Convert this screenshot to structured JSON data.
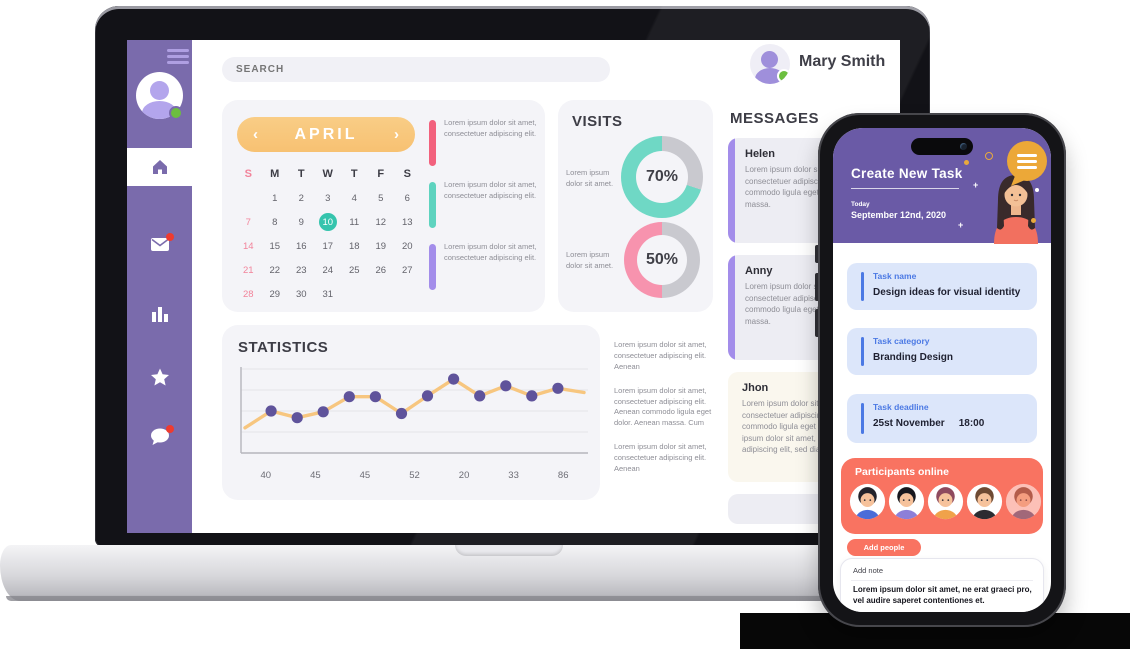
{
  "topbar": {
    "search_placeholder": "SEARCH",
    "user_name": "Mary Smith"
  },
  "sidebar": {
    "items": [
      {
        "icon": "home",
        "active": true
      },
      {
        "icon": "mail",
        "badge": true
      },
      {
        "icon": "bar-chart",
        "badge": false
      },
      {
        "icon": "star",
        "badge": false
      },
      {
        "icon": "chat",
        "badge": true
      }
    ]
  },
  "calendar": {
    "month": "APRIL",
    "prev_icon": "‹",
    "next_icon": "›",
    "day_headers": [
      "S",
      "M",
      "T",
      "W",
      "T",
      "F",
      "S"
    ],
    "weeks": [
      [
        "",
        "1",
        "2",
        "3",
        "4",
        "5",
        "6"
      ],
      [
        "7",
        "8",
        "9",
        "10",
        "11",
        "12",
        "13"
      ],
      [
        "14",
        "15",
        "16",
        "17",
        "18",
        "19",
        "20"
      ],
      [
        "21",
        "22",
        "23",
        "24",
        "25",
        "26",
        "27"
      ],
      [
        "28",
        "29",
        "30",
        "31",
        "",
        "",
        ""
      ]
    ],
    "selected_day": "10",
    "events": [
      {
        "color": "#f2617d",
        "text": "Lorem ipsum dolor sit amet, consectetuer adipiscing elit."
      },
      {
        "color": "#5ed3bf",
        "text": "Lorem ipsum dolor sit amet, consectetuer adipiscing elit."
      },
      {
        "color": "#a38dea",
        "text": "Lorem ipsum dolor sit amet, consectetuer adipiscing elit."
      }
    ]
  },
  "visits": {
    "title": "VISITS",
    "charts": [
      {
        "type": "donut",
        "percent": 70,
        "percent_label": "70%",
        "label_text": "Lorem ipsum dolor sit amet.",
        "color": "#6fd8c5",
        "track_color": "#c9c9cf"
      },
      {
        "type": "donut",
        "percent": 50,
        "percent_label": "50%",
        "label_text": "Lorem ipsum dolor sit amet.",
        "color": "#f793ae",
        "track_color": "#c9c9cf"
      }
    ]
  },
  "messages": {
    "title": "MESSAGES",
    "items": [
      {
        "name": "Helen",
        "accent": "#a38dea",
        "bg": "#ededf3",
        "text": "Lorem ipsum dolor sit amet, consectetuer adipiscing elit. Aenean commodo ligula eget dolor. Aenean massa."
      },
      {
        "name": "Anny",
        "accent": "#a38dea",
        "bg": "#ededf3",
        "text": "Lorem ipsum dolor sit amet, consectetuer adipiscing elit. Aenean commodo ligula eget dolor. Aenean massa."
      },
      {
        "name": "Jhon",
        "accent": "",
        "bg": "#faf7ee",
        "text": "Lorem ipsum dolor sit amet, consectetuer adipiscing elit. Aenean commodo ligula eget dolor. Aenean ipsum dolor sit amet, consectetuer adipiscing elit, sed diam."
      }
    ]
  },
  "statistics": {
    "title": "STATISTICS",
    "chart": {
      "type": "line",
      "x_tick_labels": [
        "40",
        "45",
        "45",
        "52",
        "20",
        "33",
        "86"
      ],
      "y_values": [
        30,
        50,
        42,
        49,
        67,
        67,
        47,
        68,
        88,
        68,
        80,
        68,
        77,
        72
      ],
      "marker": [
        false,
        true,
        true,
        true,
        true,
        true,
        true,
        true,
        true,
        true,
        true,
        true,
        true,
        false
      ],
      "ylim": [
        0,
        100
      ],
      "grid": true,
      "line_color": "#f7c67f",
      "marker_color": "#5f539b"
    },
    "notes": [
      "Lorem ipsum dolor sit amet, consectetuer adipiscing elit. Aenean",
      "Lorem ipsum dolor sit amet, consectetuer adipiscing elit. Aenean commodo ligula eget dolor. Aenean massa. Cum",
      "Lorem ipsum dolor sit amet, consectetuer adipiscing elit. Aenean"
    ]
  },
  "phone": {
    "header": {
      "title": "Create New Task",
      "today_label": "Today",
      "date": "September 12nd, 2020"
    },
    "fields": [
      {
        "label": "Task name",
        "value": "Design ideas for visual identity"
      },
      {
        "label": "Task category",
        "value": "Branding Design"
      },
      {
        "label": "Task deadline",
        "value": "25st November",
        "time": "18:00"
      }
    ],
    "participants": {
      "title": "Participants online",
      "avatars": [
        {
          "hair": "#23232b",
          "shirt": "#4a6cd8",
          "skin": "#f6c29b",
          "opacity": 1
        },
        {
          "hair": "#17171d",
          "shirt": "#8d7fd8",
          "skin": "#f6c29b",
          "opacity": 1
        },
        {
          "hair": "#8e4a5e",
          "shirt": "#f0a24a",
          "skin": "#f6c29b",
          "opacity": 1
        },
        {
          "hair": "#6e4a33",
          "shirt": "#2b2b31",
          "skin": "#f6c29b",
          "opacity": 1
        },
        {
          "hair": "#7a4a3a",
          "shirt": "#5a5f8f",
          "skin": "#f0c09a",
          "opacity": 0.55
        },
        {
          "hair": "#5a3a4a",
          "shirt": "#d87a8a",
          "skin": "#f0c09a",
          "opacity": 0.45
        }
      ]
    },
    "add_people_label": "Add people",
    "note": {
      "label": "Add note",
      "text": "Lorem ipsum dolor sit amet, ne erat graeci pro, vel audire saperet contentiones et."
    }
  }
}
